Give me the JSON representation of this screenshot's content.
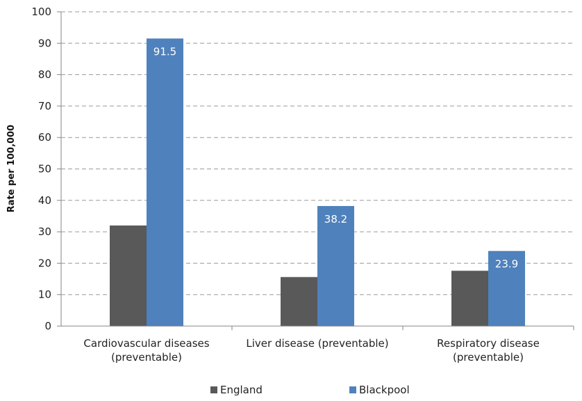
{
  "chart_data": {
    "type": "bar",
    "categories": [
      [
        "Cardiovascular diseases",
        "(preventable)"
      ],
      [
        "Liver disease (preventable)"
      ],
      [
        "Respiratory disease",
        "(preventable)"
      ]
    ],
    "series": [
      {
        "name": "England",
        "values": [
          32,
          15.6,
          17.6
        ],
        "color": "#595959",
        "show_labels": false
      },
      {
        "name": "Blackpool",
        "values": [
          91.5,
          38.2,
          23.9
        ],
        "color": "#4f81bd",
        "show_labels": true
      }
    ],
    "ylabel": "Rate per 100,000",
    "xlabel": "",
    "ylim": [
      0,
      100
    ],
    "ytick_step": 10,
    "grid": true,
    "grid_style": "dashed",
    "legend_position": "bottom"
  }
}
